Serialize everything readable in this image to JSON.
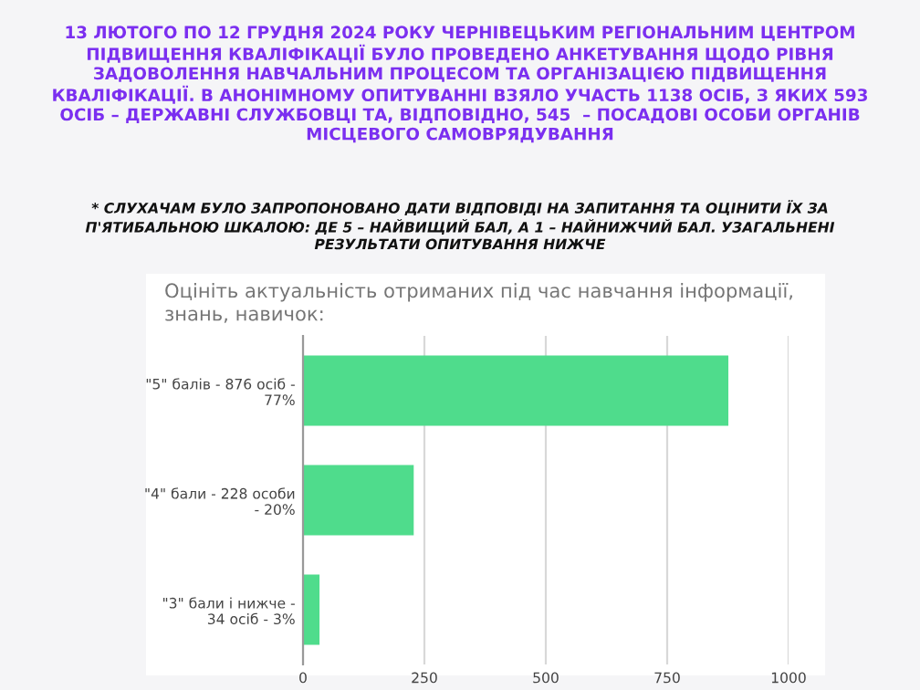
{
  "chart_data": {
    "type": "bar",
    "orientation": "horizontal",
    "title": "13 ЛЮТОГО ПО 12 ГРУДНЯ 2024 РОКУ ЧЕРНІВЕЦЬКИМ РЕГІОНАЛЬНИМ ЦЕНТРОМ\nПІДВИЩЕННЯ КВАЛІФІКАЦІЇ БУЛО ПРОВЕДЕНО АНКЕТУВАННЯ ЩОДО РІВНЯ\nЗАДОВОЛЕННЯ НАВЧАЛЬНИМ ПРОЦЕСОМ ТА ОРГАНІЗАЦІЄЮ ПІДВИЩЕННЯ\nКВАЛІФІКАЦІЇ. В АНОНІМНОМУ ОПИТУВАННІ ВЗЯЛО УЧАСТЬ 1138 ОСІБ, З ЯКИХ 593\nОСІБ – ДЕРЖАВНІ СЛУЖБОВЦІ ТА, ВІДПОВІДНО, 545  – ПОСАДОВІ ОСОБИ ОРГАНІВ\nМІСЦЕВОГО САМОВРЯДУВАННЯ",
    "subtitle": "* СЛУХАЧАМ БУЛО ЗАПРОПОНОВАНО ДАТИ ВІДПОВІДІ НА ЗАПИТАННЯ ТА ОЦІНИТИ ЇХ ЗА\nП'ЯТИБАЛЬНОЮ ШКАЛОЮ: ДЕ 5 – НАЙВИЩИЙ БАЛ, А 1 – НАЙНИЖЧИЙ БАЛ. УЗАГАЛЬНЕНІ\nРЕЗУЛЬТАТИ ОПИТУВАННЯ НИЖЧЕ",
    "annotations": [
      "Оцініть актуальність отриманих під час навчання інформації,\nзнань, навичок:"
    ],
    "categories": [
      "\"5\" балів - 876 осіб -\n77%",
      "\"4\" бали - 228 особи\n- 20%",
      "\"3\" бали і нижче -\n34 осіб - 3%"
    ],
    "values": [
      876,
      228,
      34
    ],
    "color": "#4fdc8c",
    "xlim": [
      0,
      1000
    ],
    "xticks": [
      0,
      250,
      500,
      750,
      1000
    ],
    "grid": "x"
  }
}
